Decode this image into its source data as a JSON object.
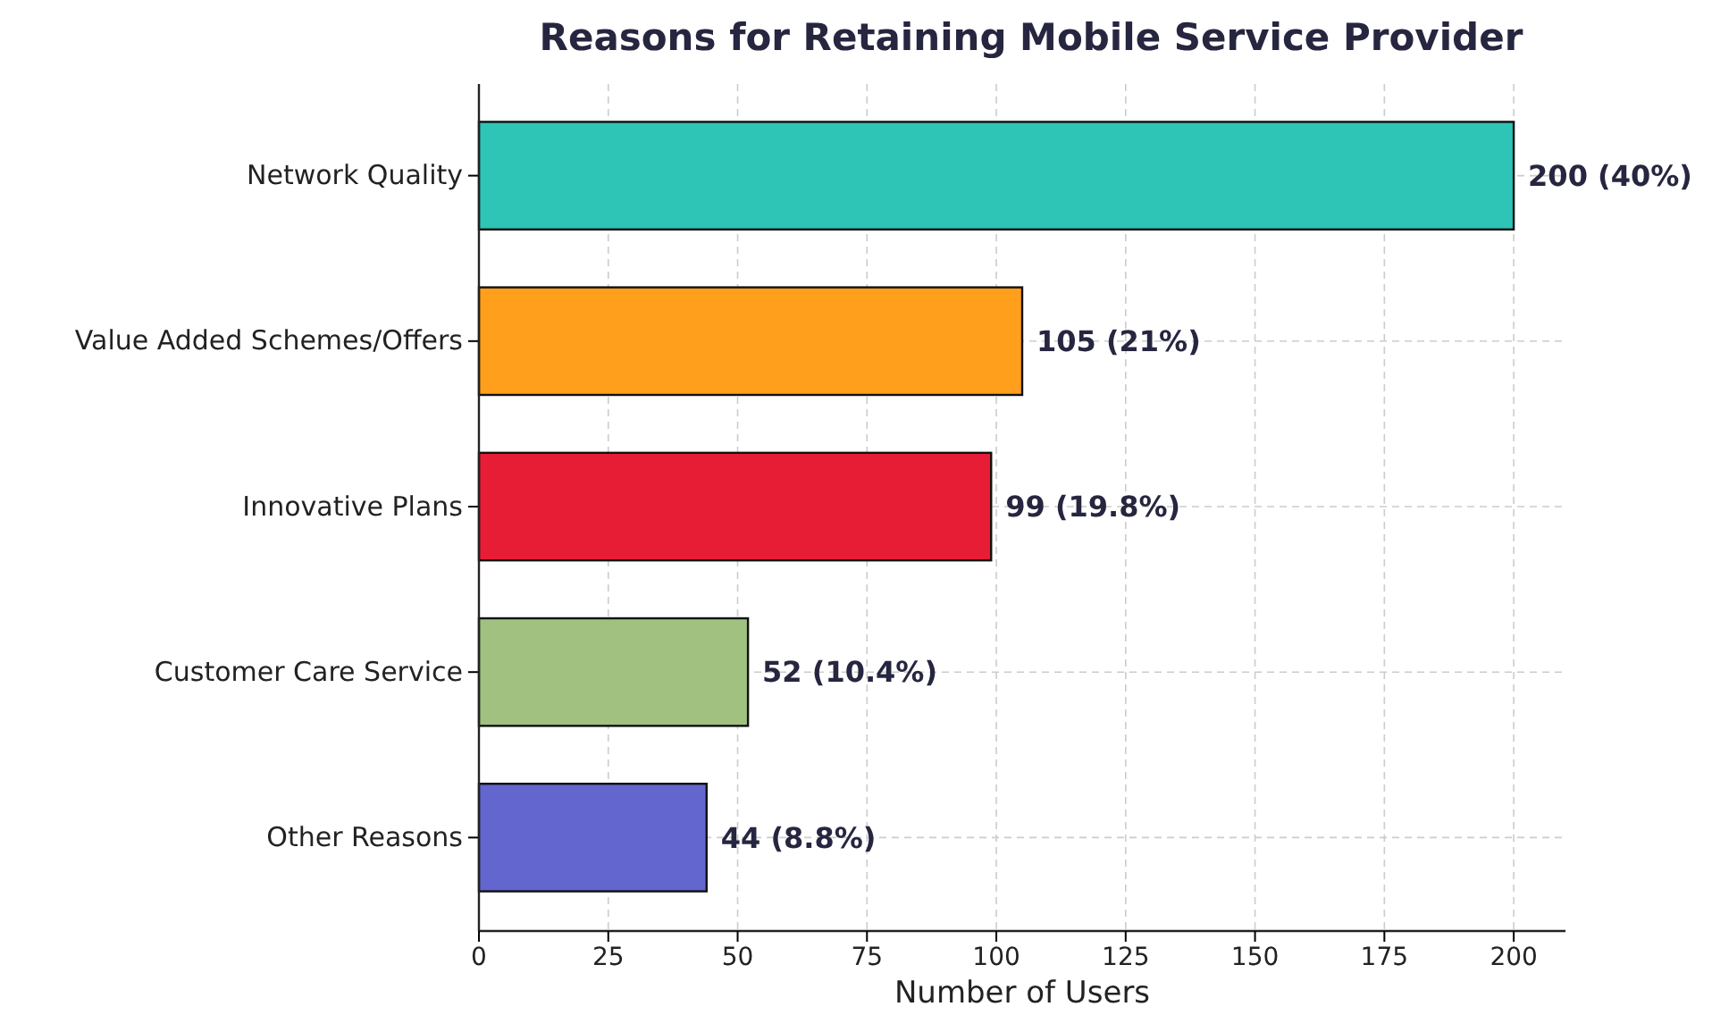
{
  "chart_data": {
    "type": "bar",
    "orientation": "horizontal",
    "title": "Reasons for Retaining Mobile Service Provider",
    "xlabel": "Number of Users",
    "categories": [
      "Network Quality",
      "Value Added Schemes/Offers",
      "Innovative Plans",
      "Customer Care Service",
      "Other Reasons"
    ],
    "values": [
      200,
      105,
      99,
      52,
      44
    ],
    "colors": [
      "#2ec4b6",
      "#ff9f1c",
      "#e71d36",
      "#a1c181",
      "#6366cf"
    ],
    "value_labels": [
      "200 (40%)",
      "105 (21%)",
      "99 (19.8%)",
      "52 (10.4%)",
      "44 (8.8%)"
    ],
    "xlim": [
      0,
      210
    ],
    "xticks": [
      0,
      25,
      50,
      75,
      100,
      125,
      150,
      175,
      200
    ],
    "grid": true
  }
}
